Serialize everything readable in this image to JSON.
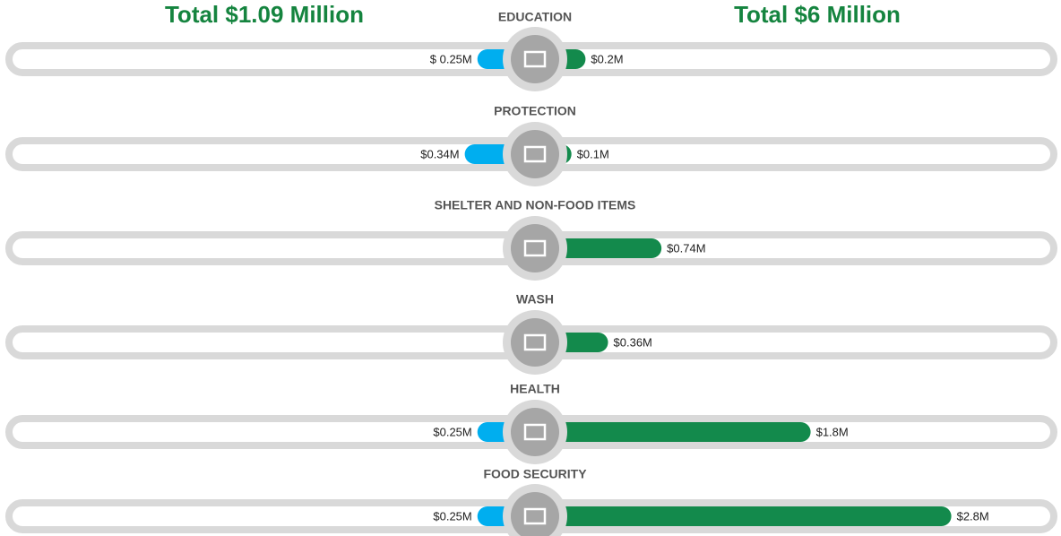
{
  "chart_data": {
    "type": "butterfly",
    "annotations": [
      "Total $1.09 Million",
      "Total $6 Million"
    ],
    "categories": [
      "EDUCATION",
      "PROTECTION",
      "SHELTER AND NON-FOOD ITEMS",
      "WASH",
      "HEALTH",
      "FOOD SECURITY"
    ],
    "series": [
      {
        "color": "#00aeef",
        "values": [
          0.25,
          0.34,
          null,
          null,
          0.25,
          0.25
        ],
        "value_labels": [
          "$ 0.25M",
          "$0.34M",
          null,
          null,
          "$0.25M",
          "$0.25M"
        ]
      },
      {
        "color": "#138a4c",
        "values": [
          0.2,
          0.1,
          0.74,
          0.36,
          1.8,
          2.8
        ],
        "value_labels": [
          "$0.2M",
          "$0.1M",
          "$0.74M",
          "$0.36M",
          "$1.8M",
          "$2.8M"
        ]
      }
    ]
  }
}
